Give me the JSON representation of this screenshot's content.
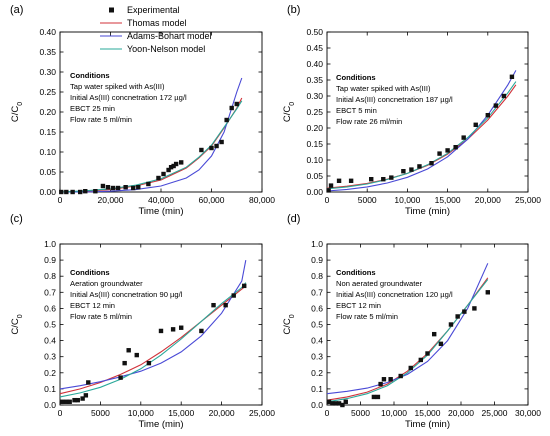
{
  "colors": {
    "experimental": "#111111",
    "thomas": "#d0323a",
    "adams": "#4a4ad6",
    "yoon": "#2aa89a",
    "axis": "#000000"
  },
  "legend": {
    "entries": [
      {
        "label": "Experimental",
        "key": "experimental",
        "kind": "marker"
      },
      {
        "label": "Thomas model",
        "key": "thomas",
        "kind": "line"
      },
      {
        "label": "Adams-Bohart model",
        "key": "adams",
        "kind": "line"
      },
      {
        "label": "Yoon-Nelson model",
        "key": "yoon",
        "kind": "line"
      }
    ]
  },
  "chart_data": [
    {
      "panel": "(a)",
      "type": "scatter",
      "xlabel": "Time (min)",
      "ylabel": "C/C0",
      "xlim": [
        0,
        80000
      ],
      "ylim": [
        0,
        0.4
      ],
      "xticks": [
        0,
        20000,
        40000,
        60000,
        80000
      ],
      "xtick_labels": [
        "0",
        "20,000",
        "40,000",
        "60,000",
        "80,000"
      ],
      "yticks": [
        0,
        0.05,
        0.1,
        0.15,
        0.2,
        0.25,
        0.3,
        0.35,
        0.4
      ],
      "ytick_labels": [
        "0.00",
        "0.05",
        "0.10",
        "0.15",
        "0.20",
        "0.25",
        "0.30",
        "0.35",
        "0.40"
      ],
      "conditions": [
        "Conditions",
        "Tap water spiked with As(III)",
        "Initial As(III) concnetration 172 µg/l",
        "EBCT 25 min",
        "Flow rate 5 ml/min"
      ],
      "experimental": {
        "x": [
          500,
          2500,
          5000,
          8000,
          10000,
          14000,
          17000,
          19000,
          21000,
          23000,
          26000,
          29000,
          31000,
          35000,
          39000,
          41000,
          43000,
          44000,
          45000,
          46000,
          48000,
          56000,
          60000,
          62000,
          64000,
          66000,
          68000,
          70000
        ],
        "y": [
          0.0,
          0.0,
          0.0,
          0.0,
          0.002,
          0.002,
          0.015,
          0.012,
          0.01,
          0.01,
          0.012,
          0.01,
          0.012,
          0.02,
          0.035,
          0.045,
          0.055,
          0.062,
          0.065,
          0.07,
          0.074,
          0.105,
          0.11,
          0.115,
          0.125,
          0.18,
          0.21,
          0.22
        ]
      },
      "series": [
        {
          "name": "Thomas model",
          "key": "thomas",
          "x": [
            0,
            10000,
            20000,
            30000,
            40000,
            50000,
            55000,
            60000,
            65000,
            70000,
            72000
          ],
          "y": [
            0.0,
            0.002,
            0.006,
            0.015,
            0.03,
            0.06,
            0.085,
            0.115,
            0.16,
            0.21,
            0.235
          ]
        },
        {
          "name": "Adams-Bohart model",
          "key": "adams",
          "x": [
            0,
            10000,
            20000,
            30000,
            40000,
            50000,
            55000,
            60000,
            65000,
            70000,
            72000
          ],
          "y": [
            0.0,
            0.0,
            0.002,
            0.006,
            0.015,
            0.035,
            0.055,
            0.09,
            0.15,
            0.25,
            0.285
          ]
        },
        {
          "name": "Yoon-Nelson model",
          "key": "yoon",
          "x": [
            0,
            10000,
            20000,
            30000,
            40000,
            50000,
            55000,
            60000,
            65000,
            70000,
            72000
          ],
          "y": [
            0.0,
            0.003,
            0.008,
            0.017,
            0.033,
            0.062,
            0.087,
            0.117,
            0.162,
            0.208,
            0.228
          ]
        }
      ]
    },
    {
      "panel": "(b)",
      "type": "scatter",
      "xlabel": "Time (min)",
      "ylabel": "C/C0",
      "xlim": [
        0,
        25000
      ],
      "ylim": [
        0,
        0.5
      ],
      "xticks": [
        0,
        5000,
        10000,
        15000,
        20000,
        25000
      ],
      "xtick_labels": [
        "0",
        "5000",
        "10,000",
        "15,000",
        "20,000",
        "25,000"
      ],
      "yticks": [
        0,
        0.05,
        0.1,
        0.15,
        0.2,
        0.25,
        0.3,
        0.35,
        0.4,
        0.45,
        0.5
      ],
      "ytick_labels": [
        "0.00",
        "0.05",
        "0.10",
        "0.15",
        "0.20",
        "0.25",
        "0.30",
        "0.35",
        "0.40",
        "0.45",
        "0.50"
      ],
      "conditions": [
        "Conditions",
        "Tap water spiked with As(III)",
        "Initial As(III) concnetration 187 µg/l",
        "EBCT 5 min",
        "Flow rate 26 ml/min"
      ],
      "experimental": {
        "x": [
          200,
          500,
          1500,
          3000,
          5500,
          7000,
          8000,
          9500,
          10500,
          11500,
          13000,
          14000,
          15000,
          16000,
          17000,
          18500,
          20000,
          21000,
          22000,
          23000
        ],
        "y": [
          0.005,
          0.02,
          0.035,
          0.035,
          0.04,
          0.04,
          0.045,
          0.065,
          0.07,
          0.08,
          0.09,
          0.12,
          0.13,
          0.14,
          0.17,
          0.21,
          0.24,
          0.27,
          0.3,
          0.36
        ]
      },
      "series": [
        {
          "name": "Thomas model",
          "key": "thomas",
          "x": [
            0,
            2500,
            5000,
            7500,
            10000,
            12500,
            15000,
            17500,
            20000,
            22500,
            23500
          ],
          "y": [
            0.012,
            0.018,
            0.027,
            0.04,
            0.058,
            0.083,
            0.118,
            0.165,
            0.225,
            0.3,
            0.335
          ]
        },
        {
          "name": "Adams-Bohart model",
          "key": "adams",
          "x": [
            0,
            2500,
            5000,
            7500,
            10000,
            12500,
            15000,
            17500,
            20000,
            22500,
            23500
          ],
          "y": [
            0.003,
            0.008,
            0.016,
            0.028,
            0.046,
            0.072,
            0.11,
            0.165,
            0.24,
            0.335,
            0.38
          ]
        },
        {
          "name": "Yoon-Nelson model",
          "key": "yoon",
          "x": [
            0,
            2500,
            5000,
            7500,
            10000,
            12500,
            15000,
            17500,
            20000,
            22500,
            23500
          ],
          "y": [
            0.01,
            0.016,
            0.025,
            0.039,
            0.058,
            0.085,
            0.121,
            0.17,
            0.232,
            0.31,
            0.345
          ]
        }
      ]
    },
    {
      "panel": "(c)",
      "type": "scatter",
      "xlabel": "Time (min)",
      "ylabel": "C/C0",
      "xlim": [
        0,
        25000
      ],
      "ylim": [
        0,
        1.0
      ],
      "xticks": [
        0,
        5000,
        10000,
        15000,
        20000,
        25000
      ],
      "xtick_labels": [
        "0",
        "5000",
        "10,000",
        "15,000",
        "20,000",
        "25,000"
      ],
      "yticks": [
        0,
        0.1,
        0.2,
        0.3,
        0.4,
        0.5,
        0.6,
        0.7,
        0.8,
        0.9,
        1.0
      ],
      "ytick_labels": [
        "0.0",
        "0.1",
        "0.2",
        "0.3",
        "0.4",
        "0.5",
        "0.6",
        "0.7",
        "0.8",
        "0.9",
        "1.0"
      ],
      "conditions": [
        "Conditions",
        "Aeration groundwater",
        "Initial As(III) concnetration 90 µg/l",
        "EBCT 12 min",
        "Flow rate 5 ml/min"
      ],
      "experimental": {
        "x": [
          300,
          800,
          1200,
          1800,
          2200,
          2800,
          3200,
          3500,
          7500,
          8000,
          8500,
          9500,
          11000,
          12500,
          14000,
          15000,
          17500,
          19000,
          20500,
          21500,
          22800
        ],
        "y": [
          0.02,
          0.02,
          0.02,
          0.03,
          0.03,
          0.04,
          0.06,
          0.14,
          0.17,
          0.26,
          0.34,
          0.31,
          0.26,
          0.46,
          0.47,
          0.48,
          0.46,
          0.62,
          0.62,
          0.68,
          0.74
        ]
      },
      "series": [
        {
          "name": "Thomas model",
          "key": "thomas",
          "x": [
            0,
            2500,
            5000,
            7500,
            10000,
            12500,
            15000,
            17500,
            20000,
            22500,
            23000
          ],
          "y": [
            0.07,
            0.1,
            0.14,
            0.19,
            0.25,
            0.33,
            0.42,
            0.52,
            0.62,
            0.72,
            0.74
          ]
        },
        {
          "name": "Adams-Bohart model",
          "key": "adams",
          "x": [
            0,
            2500,
            5000,
            7500,
            10000,
            12500,
            15000,
            17500,
            20000,
            22500,
            23000
          ],
          "y": [
            0.1,
            0.12,
            0.145,
            0.175,
            0.21,
            0.26,
            0.33,
            0.43,
            0.57,
            0.77,
            0.9
          ]
        },
        {
          "name": "Yoon-Nelson model",
          "key": "yoon",
          "x": [
            0,
            2500,
            5000,
            7500,
            10000,
            12500,
            15000,
            17500,
            20000,
            22500,
            23000
          ],
          "y": [
            0.05,
            0.075,
            0.11,
            0.16,
            0.225,
            0.31,
            0.41,
            0.52,
            0.63,
            0.73,
            0.76
          ]
        }
      ]
    },
    {
      "panel": "(d)",
      "type": "scatter",
      "xlabel": "Time (min)",
      "ylabel": "C/C0",
      "xlim": [
        0,
        30000
      ],
      "ylim": [
        0,
        1.0
      ],
      "xticks": [
        0,
        5000,
        10000,
        15000,
        20000,
        25000,
        30000
      ],
      "xtick_labels": [
        "0",
        "5000",
        "10,000",
        "15,000",
        "20,000",
        "25,000",
        "30,000"
      ],
      "yticks": [
        0,
        0.1,
        0.2,
        0.3,
        0.4,
        0.5,
        0.6,
        0.7,
        0.8,
        0.9,
        1.0
      ],
      "ytick_labels": [
        "0.0",
        "0.1",
        "0.2",
        "0.3",
        "0.4",
        "0.5",
        "0.6",
        "0.7",
        "0.8",
        "0.9",
        "1.0"
      ],
      "conditions": [
        "Conditions",
        "Non aerated groundwater",
        "Initial As(III) concnetration 120 µg/l",
        "EBCT 12 min",
        "Flow rate 5 ml/min"
      ],
      "experimental": {
        "x": [
          300,
          800,
          1300,
          1800,
          2300,
          2800,
          7000,
          7600,
          8000,
          8500,
          9500,
          11000,
          12500,
          14000,
          15000,
          16000,
          17000,
          18500,
          19500,
          20500,
          22000,
          24000
        ],
        "y": [
          0.02,
          0.01,
          0.01,
          0.01,
          0.0,
          0.02,
          0.05,
          0.05,
          0.13,
          0.16,
          0.16,
          0.18,
          0.23,
          0.28,
          0.32,
          0.44,
          0.38,
          0.5,
          0.55,
          0.58,
          0.6,
          0.7
        ]
      },
      "series": [
        {
          "name": "Thomas model",
          "key": "thomas",
          "x": [
            0,
            3000,
            6000,
            9000,
            12000,
            15000,
            18000,
            21000,
            24000
          ],
          "y": [
            0.03,
            0.05,
            0.08,
            0.13,
            0.21,
            0.32,
            0.46,
            0.62,
            0.79
          ]
        },
        {
          "name": "Adams-Bohart model",
          "key": "adams",
          "x": [
            0,
            3000,
            6000,
            9000,
            12000,
            15000,
            18000,
            21000,
            24000
          ],
          "y": [
            0.07,
            0.085,
            0.105,
            0.14,
            0.19,
            0.27,
            0.4,
            0.6,
            0.88
          ]
        },
        {
          "name": "Yoon-Nelson model",
          "key": "yoon",
          "x": [
            0,
            3000,
            6000,
            9000,
            12000,
            15000,
            18000,
            21000,
            24000
          ],
          "y": [
            0.02,
            0.04,
            0.07,
            0.12,
            0.2,
            0.31,
            0.46,
            0.62,
            0.78
          ]
        }
      ]
    }
  ]
}
